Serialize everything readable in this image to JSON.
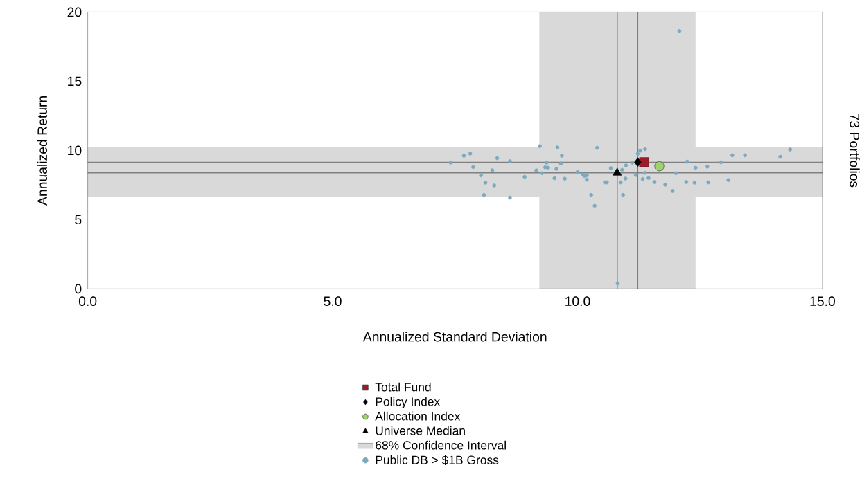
{
  "chart_data": {
    "type": "scatter",
    "xlabel": "Annualized Standard Deviation",
    "ylabel": "Annualized Return",
    "annotations": [
      "73 Portfolios"
    ],
    "xlim": [
      0,
      15
    ],
    "ylim": [
      0,
      20
    ],
    "xticks": [
      {
        "value": 0,
        "label": "0.0"
      },
      {
        "value": 5,
        "label": "5.0"
      },
      {
        "value": 10,
        "label": "10.0"
      },
      {
        "value": 15,
        "label": "15.0"
      }
    ],
    "yticks": [
      0,
      5,
      10,
      15,
      20
    ],
    "legend": "bottom",
    "grid": false,
    "bands": [
      {
        "axis": "x",
        "from": 9.22,
        "to": 12.41,
        "label": "68% Confidence Interval",
        "color": "#d9d9d9"
      },
      {
        "axis": "y",
        "from": 6.63,
        "to": 10.22,
        "color": "#d9d9d9"
      }
    ],
    "ref_lines": [
      {
        "axis": "x",
        "value": 10.81,
        "color": "#333333"
      },
      {
        "axis": "x",
        "value": 11.23,
        "color": "#808080"
      },
      {
        "axis": "y",
        "value": 9.15,
        "color": "#808080"
      },
      {
        "axis": "y",
        "value": 8.38,
        "color": "#808080"
      }
    ],
    "series": [
      {
        "name": "Total Fund",
        "color": "#9e1b2a",
        "marker": "square",
        "x": [
          11.36
        ],
        "values": [
          9.15
        ]
      },
      {
        "name": "Policy Index",
        "color": "#000000",
        "marker": "diamond",
        "x": [
          11.23
        ],
        "values": [
          9.15
        ]
      },
      {
        "name": "Allocation Index",
        "color": "#9ed36a",
        "marker": "circle",
        "x": [
          11.67
        ],
        "values": [
          8.86
        ]
      },
      {
        "name": "Universe Median",
        "color": "#000000",
        "marker": "triangle",
        "x": [
          10.81
        ],
        "values": [
          8.38
        ]
      },
      {
        "name": "Public DB > $1B Gross",
        "color": "#7aaac0",
        "marker": "circle",
        "x": [
          7.41,
          7.68,
          7.81,
          7.87,
          8.36,
          8.62,
          8.03,
          8.26,
          8.12,
          8.3,
          8.09,
          8.62,
          8.92,
          9.23,
          9.16,
          9.28,
          9.37,
          9.34,
          9.4,
          9.59,
          9.68,
          9.66,
          9.57,
          9.53,
          9.74,
          10.0,
          10.11,
          10.14,
          10.19,
          10.19,
          10.4,
          10.28,
          10.35,
          10.56,
          10.6,
          10.68,
          10.91,
          10.99,
          10.88,
          10.93,
          10.98,
          11.12,
          11.19,
          11.23,
          11.28,
          11.38,
          11.37,
          11.33,
          11.45,
          11.57,
          11.79,
          11.94,
          12.01,
          12.24,
          12.22,
          12.39,
          12.41,
          12.65,
          12.67,
          12.93,
          13.08,
          13.16,
          13.42,
          14.14,
          14.34,
          12.08,
          10.82
        ],
        "values": [
          9.12,
          9.62,
          9.77,
          8.8,
          9.44,
          9.22,
          8.2,
          8.57,
          7.67,
          7.47,
          6.78,
          6.59,
          8.09,
          10.31,
          8.56,
          8.36,
          9.12,
          8.78,
          8.75,
          10.22,
          9.62,
          9.06,
          8.67,
          7.99,
          7.96,
          8.44,
          8.27,
          8.15,
          8.21,
          7.89,
          10.19,
          6.78,
          6.0,
          7.69,
          7.69,
          8.72,
          8.6,
          8.92,
          7.69,
          6.78,
          7.97,
          9.12,
          8.23,
          9.76,
          9.98,
          10.1,
          8.38,
          7.93,
          8.01,
          7.72,
          7.52,
          7.07,
          8.35,
          9.19,
          7.72,
          7.67,
          8.75,
          8.83,
          7.69,
          9.14,
          7.86,
          9.65,
          9.65,
          9.54,
          10.07,
          18.63,
          0.39
        ]
      }
    ]
  }
}
